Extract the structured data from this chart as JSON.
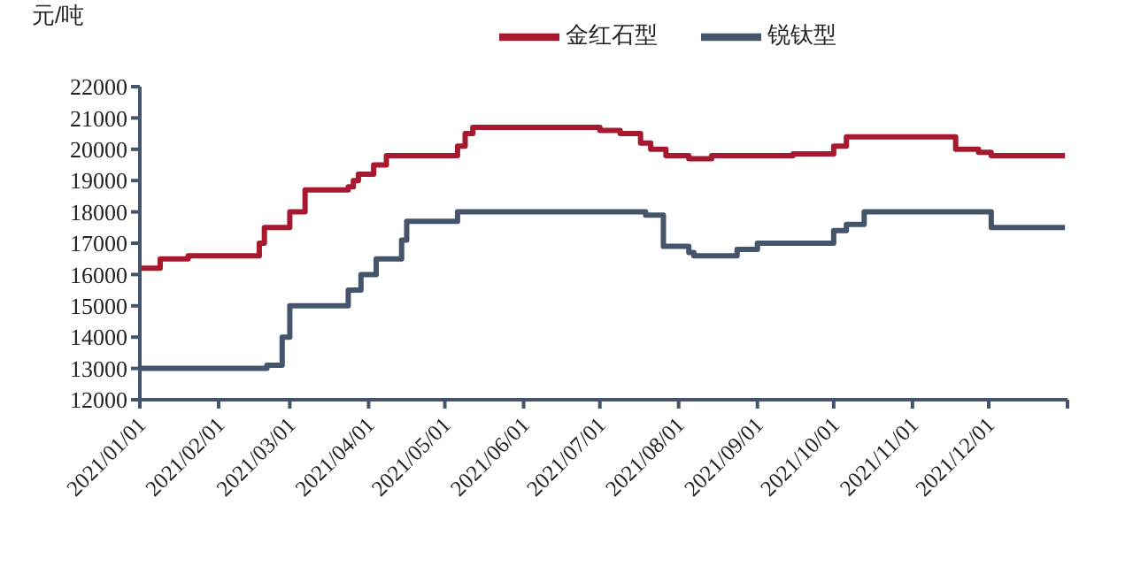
{
  "chart_data": {
    "type": "step",
    "ylabel": "元/吨",
    "legend": "top",
    "marker": "none",
    "line_style": "solid",
    "grid": false,
    "xlim": [
      "2021-01-01",
      "2022-01-01"
    ],
    "xticks": [
      {
        "value": "2021-01-01",
        "label": "2021/01/01"
      },
      {
        "value": "2021-02-01",
        "label": "2021/02/01"
      },
      {
        "value": "2021-03-01",
        "label": "2021/03/01"
      },
      {
        "value": "2021-04-01",
        "label": "2021/04/01"
      },
      {
        "value": "2021-05-01",
        "label": "2021/05/01"
      },
      {
        "value": "2021-06-01",
        "label": "2021/06/01"
      },
      {
        "value": "2021-07-01",
        "label": "2021/07/01"
      },
      {
        "value": "2021-08-01",
        "label": "2021/08/01"
      },
      {
        "value": "2021-09-01",
        "label": "2021/09/01"
      },
      {
        "value": "2021-10-01",
        "label": "2021/10/01"
      },
      {
        "value": "2021-11-01",
        "label": "2021/11/01"
      },
      {
        "value": "2021-12-01",
        "label": "2021/12/01"
      },
      {
        "value": "2022-01-01",
        "label": null
      }
    ],
    "ylim": [
      12000,
      22000
    ],
    "yticks": [
      12000,
      13000,
      14000,
      15000,
      16000,
      17000,
      18000,
      19000,
      20000,
      21000,
      22000
    ],
    "series": [
      {
        "name": "金红石型",
        "color": "#a6192e",
        "x": [
          "2021-01-01",
          "2021-01-09",
          "2021-01-20",
          "2021-02-17",
          "2021-02-19",
          "2021-03-01",
          "2021-03-07",
          "2021-03-24",
          "2021-03-26",
          "2021-03-28",
          "2021-04-03",
          "2021-04-08",
          "2021-05-06",
          "2021-05-09",
          "2021-05-12",
          "2021-07-01",
          "2021-07-09",
          "2021-07-17",
          "2021-07-21",
          "2021-07-27",
          "2021-08-05",
          "2021-08-14",
          "2021-09-15",
          "2021-10-01",
          "2021-10-06",
          "2021-11-18",
          "2021-11-27",
          "2021-12-02",
          "2021-12-31"
        ],
        "values": [
          16200,
          16500,
          16600,
          17000,
          17500,
          18000,
          18700,
          18800,
          19000,
          19200,
          19500,
          19800,
          20100,
          20500,
          20700,
          20600,
          20500,
          20200,
          20000,
          19800,
          19700,
          19800,
          19850,
          20100,
          20400,
          20000,
          19900,
          19800,
          19800
        ]
      },
      {
        "name": "锐钛型",
        "color": "#44546a",
        "x": [
          "2021-01-01",
          "2021-02-20",
          "2021-02-26",
          "2021-03-01",
          "2021-03-24",
          "2021-03-29",
          "2021-04-04",
          "2021-04-14",
          "2021-04-16",
          "2021-05-06",
          "2021-07-19",
          "2021-07-26",
          "2021-08-05",
          "2021-08-07",
          "2021-08-24",
          "2021-09-01",
          "2021-10-01",
          "2021-10-06",
          "2021-10-13",
          "2021-12-02",
          "2021-12-31"
        ],
        "values": [
          13000,
          13100,
          14000,
          15000,
          15500,
          16000,
          16500,
          17100,
          17700,
          18000,
          17900,
          16900,
          16700,
          16600,
          16800,
          17000,
          17400,
          17600,
          18000,
          17500,
          17500
        ]
      }
    ]
  }
}
